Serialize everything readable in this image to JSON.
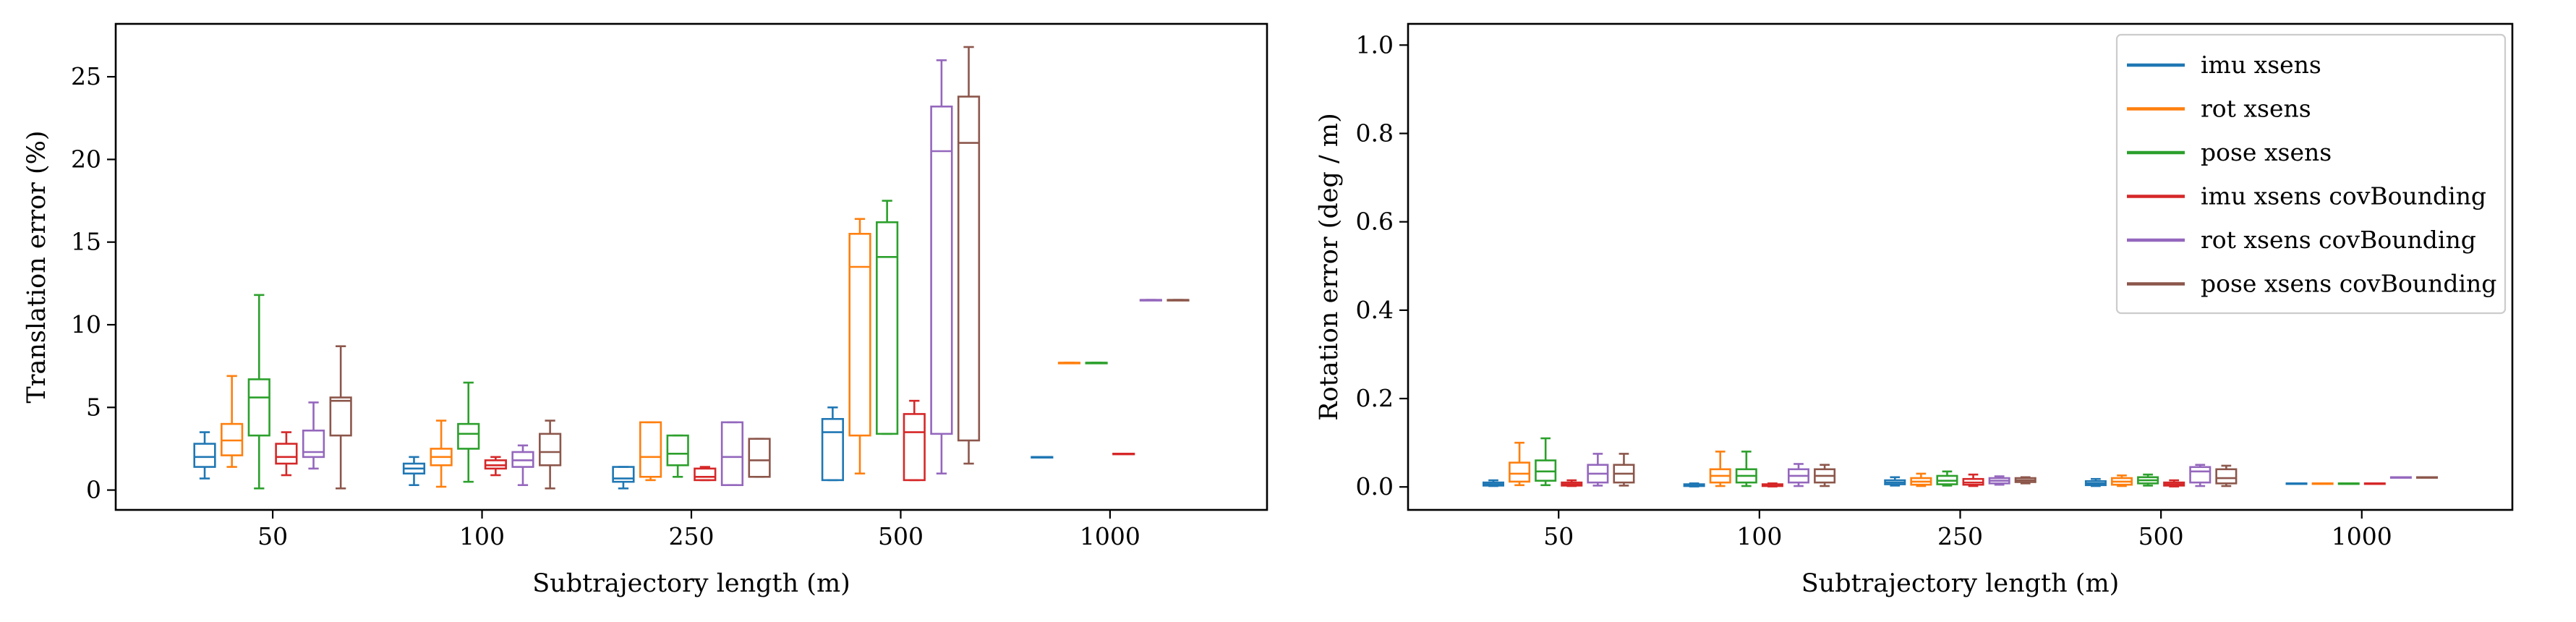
{
  "chart_data": [
    {
      "type": "box",
      "xlabel": "Subtrajectory length (m)",
      "ylabel": "Translation error (%)",
      "categories": [
        "50",
        "100",
        "250",
        "500",
        "1000"
      ],
      "ylim": [
        -1.2,
        28.2
      ],
      "yticks": [
        0,
        5,
        10,
        15,
        20,
        25
      ],
      "grid": false,
      "series": [
        {
          "name": "imu xsens",
          "color": "#1f77b4",
          "boxes": [
            {
              "wlo": 0.7,
              "q1": 1.4,
              "med": 2.0,
              "q3": 2.8,
              "whi": 3.5
            },
            {
              "wlo": 0.3,
              "q1": 1.0,
              "med": 1.3,
              "q3": 1.6,
              "whi": 2.0
            },
            {
              "wlo": 0.1,
              "q1": 0.5,
              "med": 0.7,
              "q3": 1.4,
              "whi": 1.4
            },
            {
              "wlo": 0.6,
              "q1": 0.6,
              "med": 3.5,
              "q3": 4.3,
              "whi": 5.0
            },
            {
              "wlo": 2.0,
              "q1": 2.0,
              "med": 2.0,
              "q3": 2.0,
              "whi": 2.0
            }
          ]
        },
        {
          "name": "rot xsens",
          "color": "#ff7f0e",
          "boxes": [
            {
              "wlo": 1.4,
              "q1": 2.1,
              "med": 3.0,
              "q3": 4.0,
              "whi": 6.9
            },
            {
              "wlo": 0.2,
              "q1": 1.5,
              "med": 2.0,
              "q3": 2.5,
              "whi": 4.2
            },
            {
              "wlo": 0.6,
              "q1": 0.8,
              "med": 2.0,
              "q3": 4.1,
              "whi": 4.1
            },
            {
              "wlo": 1.0,
              "q1": 3.3,
              "med": 13.5,
              "q3": 15.5,
              "whi": 16.4
            },
            {
              "wlo": 7.7,
              "q1": 7.7,
              "med": 7.7,
              "q3": 7.7,
              "whi": 7.7
            }
          ]
        },
        {
          "name": "pose xsens",
          "color": "#2ca02c",
          "boxes": [
            {
              "wlo": 0.1,
              "q1": 3.3,
              "med": 5.6,
              "q3": 6.7,
              "whi": 11.8
            },
            {
              "wlo": 0.5,
              "q1": 2.5,
              "med": 3.4,
              "q3": 4.0,
              "whi": 6.5
            },
            {
              "wlo": 0.8,
              "q1": 1.5,
              "med": 2.2,
              "q3": 3.3,
              "whi": 3.3
            },
            {
              "wlo": 3.4,
              "q1": 3.4,
              "med": 14.1,
              "q3": 16.2,
              "whi": 17.5
            },
            {
              "wlo": 7.7,
              "q1": 7.7,
              "med": 7.7,
              "q3": 7.7,
              "whi": 7.7
            }
          ]
        },
        {
          "name": "imu xsens covBounding",
          "color": "#d62728",
          "boxes": [
            {
              "wlo": 0.9,
              "q1": 1.6,
              "med": 2.0,
              "q3": 2.8,
              "whi": 3.5
            },
            {
              "wlo": 0.9,
              "q1": 1.3,
              "med": 1.5,
              "q3": 1.8,
              "whi": 2.0
            },
            {
              "wlo": 0.6,
              "q1": 0.6,
              "med": 0.8,
              "q3": 1.3,
              "whi": 1.4
            },
            {
              "wlo": 0.6,
              "q1": 0.6,
              "med": 3.5,
              "q3": 4.6,
              "whi": 5.4
            },
            {
              "wlo": 2.2,
              "q1": 2.2,
              "med": 2.2,
              "q3": 2.2,
              "whi": 2.2
            }
          ]
        },
        {
          "name": "rot xsens covBounding",
          "color": "#9467bd",
          "boxes": [
            {
              "wlo": 1.3,
              "q1": 2.0,
              "med": 2.3,
              "q3": 3.6,
              "whi": 5.3
            },
            {
              "wlo": 0.3,
              "q1": 1.4,
              "med": 1.8,
              "q3": 2.3,
              "whi": 2.7
            },
            {
              "wlo": 0.3,
              "q1": 0.3,
              "med": 2.0,
              "q3": 4.1,
              "whi": 4.1
            },
            {
              "wlo": 1.0,
              "q1": 3.4,
              "med": 20.5,
              "q3": 23.2,
              "whi": 26.0
            },
            {
              "wlo": 11.5,
              "q1": 11.5,
              "med": 11.5,
              "q3": 11.5,
              "whi": 11.5
            }
          ]
        },
        {
          "name": "pose xsens covBounding",
          "color": "#8c564b",
          "boxes": [
            {
              "wlo": 0.1,
              "q1": 3.3,
              "med": 5.4,
              "q3": 5.6,
              "whi": 8.7
            },
            {
              "wlo": 0.1,
              "q1": 1.5,
              "med": 2.3,
              "q3": 3.4,
              "whi": 4.2
            },
            {
              "wlo": 0.8,
              "q1": 0.8,
              "med": 1.8,
              "q3": 3.1,
              "whi": 3.1
            },
            {
              "wlo": 1.6,
              "q1": 3.0,
              "med": 21.0,
              "q3": 23.8,
              "whi": 26.8
            },
            {
              "wlo": 11.5,
              "q1": 11.5,
              "med": 11.5,
              "q3": 11.5,
              "whi": 11.5
            }
          ]
        }
      ]
    },
    {
      "type": "box",
      "xlabel": "Subtrajectory length (m)",
      "ylabel": "Rotation error (deg / m)",
      "categories": [
        "50",
        "100",
        "250",
        "500",
        "1000"
      ],
      "ylim": [
        -0.052,
        1.048
      ],
      "yticks": [
        0.0,
        0.2,
        0.4,
        0.6,
        0.8,
        1.0
      ],
      "grid": false,
      "legend": {
        "placement": "top-right"
      },
      "series": [
        {
          "name": "imu xsens",
          "color": "#1f77b4",
          "boxes": [
            {
              "wlo": 0.002,
              "q1": 0.003,
              "med": 0.006,
              "q3": 0.01,
              "whi": 0.015
            },
            {
              "wlo": 0.001,
              "q1": 0.002,
              "med": 0.004,
              "q3": 0.006,
              "whi": 0.008
            },
            {
              "wlo": 0.003,
              "q1": 0.006,
              "med": 0.01,
              "q3": 0.015,
              "whi": 0.022
            },
            {
              "wlo": 0.002,
              "q1": 0.004,
              "med": 0.008,
              "q3": 0.013,
              "whi": 0.018
            },
            {
              "wlo": 0.008,
              "q1": 0.008,
              "med": 0.008,
              "q3": 0.008,
              "whi": 0.008
            }
          ]
        },
        {
          "name": "rot xsens",
          "color": "#ff7f0e",
          "boxes": [
            {
              "wlo": 0.004,
              "q1": 0.012,
              "med": 0.03,
              "q3": 0.055,
              "whi": 0.1
            },
            {
              "wlo": 0.002,
              "q1": 0.01,
              "med": 0.025,
              "q3": 0.04,
              "whi": 0.08
            },
            {
              "wlo": 0.002,
              "q1": 0.005,
              "med": 0.012,
              "q3": 0.02,
              "whi": 0.03
            },
            {
              "wlo": 0.002,
              "q1": 0.005,
              "med": 0.012,
              "q3": 0.02,
              "whi": 0.026
            },
            {
              "wlo": 0.008,
              "q1": 0.008,
              "med": 0.008,
              "q3": 0.008,
              "whi": 0.008
            }
          ]
        },
        {
          "name": "pose xsens",
          "color": "#2ca02c",
          "boxes": [
            {
              "wlo": 0.004,
              "q1": 0.014,
              "med": 0.035,
              "q3": 0.06,
              "whi": 0.11
            },
            {
              "wlo": 0.002,
              "q1": 0.01,
              "med": 0.025,
              "q3": 0.04,
              "whi": 0.08
            },
            {
              "wlo": 0.003,
              "q1": 0.006,
              "med": 0.014,
              "q3": 0.025,
              "whi": 0.035
            },
            {
              "wlo": 0.003,
              "q1": 0.008,
              "med": 0.015,
              "q3": 0.022,
              "whi": 0.028
            },
            {
              "wlo": 0.008,
              "q1": 0.008,
              "med": 0.008,
              "q3": 0.008,
              "whi": 0.008
            }
          ]
        },
        {
          "name": "imu xsens covBounding",
          "color": "#d62728",
          "boxes": [
            {
              "wlo": 0.002,
              "q1": 0.003,
              "med": 0.006,
              "q3": 0.01,
              "whi": 0.015
            },
            {
              "wlo": 0.001,
              "q1": 0.002,
              "med": 0.004,
              "q3": 0.006,
              "whi": 0.008
            },
            {
              "wlo": 0.002,
              "q1": 0.005,
              "med": 0.01,
              "q3": 0.018,
              "whi": 0.028
            },
            {
              "wlo": 0.001,
              "q1": 0.003,
              "med": 0.006,
              "q3": 0.01,
              "whi": 0.015
            },
            {
              "wlo": 0.008,
              "q1": 0.008,
              "med": 0.008,
              "q3": 0.008,
              "whi": 0.008
            }
          ]
        },
        {
          "name": "rot xsens covBounding",
          "color": "#9467bd",
          "boxes": [
            {
              "wlo": 0.003,
              "q1": 0.01,
              "med": 0.03,
              "q3": 0.05,
              "whi": 0.075
            },
            {
              "wlo": 0.002,
              "q1": 0.01,
              "med": 0.025,
              "q3": 0.04,
              "whi": 0.052
            },
            {
              "wlo": 0.005,
              "q1": 0.008,
              "med": 0.014,
              "q3": 0.02,
              "whi": 0.024
            },
            {
              "wlo": 0.002,
              "q1": 0.01,
              "med": 0.035,
              "q3": 0.045,
              "whi": 0.05
            },
            {
              "wlo": 0.022,
              "q1": 0.022,
              "med": 0.022,
              "q3": 0.022,
              "whi": 0.022
            }
          ]
        },
        {
          "name": "pose xsens covBounding",
          "color": "#8c564b",
          "boxes": [
            {
              "wlo": 0.003,
              "q1": 0.01,
              "med": 0.03,
              "q3": 0.05,
              "whi": 0.075
            },
            {
              "wlo": 0.002,
              "q1": 0.01,
              "med": 0.025,
              "q3": 0.04,
              "whi": 0.05
            },
            {
              "wlo": 0.008,
              "q1": 0.011,
              "med": 0.015,
              "q3": 0.02,
              "whi": 0.022
            },
            {
              "wlo": 0.002,
              "q1": 0.008,
              "med": 0.02,
              "q3": 0.04,
              "whi": 0.048
            },
            {
              "wlo": 0.022,
              "q1": 0.022,
              "med": 0.022,
              "q3": 0.022,
              "whi": 0.022
            }
          ]
        }
      ]
    }
  ]
}
